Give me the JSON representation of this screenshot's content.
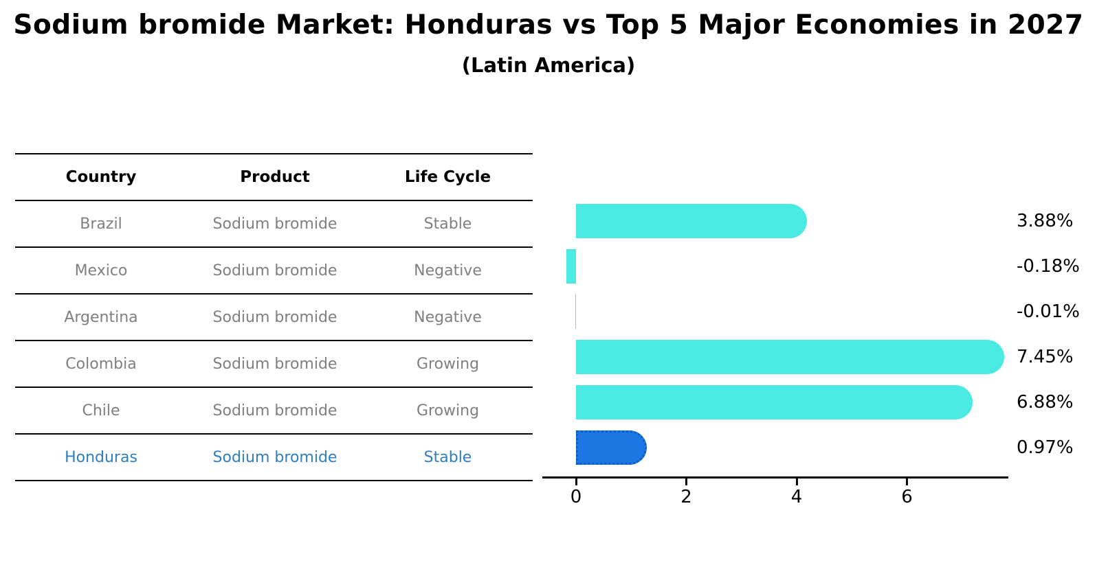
{
  "title": "Sodium bromide Market: Honduras vs Top 5 Major Economies in 2027",
  "subtitle": "(Latin America)",
  "table": {
    "headers": {
      "country": "Country",
      "product": "Product",
      "life_cycle": "Life Cycle"
    },
    "rows": [
      {
        "country": "Brazil",
        "product": "Sodium bromide",
        "life_cycle": "Stable",
        "highlight": false
      },
      {
        "country": "Mexico",
        "product": "Sodium bromide",
        "life_cycle": "Negative",
        "highlight": false
      },
      {
        "country": "Argentina",
        "product": "Sodium bromide",
        "life_cycle": "Negative",
        "highlight": false
      },
      {
        "country": "Colombia",
        "product": "Sodium bromide",
        "life_cycle": "Growing",
        "highlight": false
      },
      {
        "country": "Chile",
        "product": "Sodium bromide",
        "life_cycle": "Growing",
        "highlight": false
      },
      {
        "country": "Honduras",
        "product": "Sodium bromide",
        "life_cycle": "Stable",
        "highlight": true
      }
    ]
  },
  "chart_data": {
    "type": "bar",
    "orientation": "horizontal",
    "categories": [
      "Brazil",
      "Mexico",
      "Argentina",
      "Colombia",
      "Chile",
      "Honduras"
    ],
    "values": [
      3.88,
      -0.18,
      -0.01,
      7.45,
      6.88,
      0.97
    ],
    "value_labels": [
      "3.88%",
      "-0.18%",
      "-0.01%",
      "7.45%",
      "6.88%",
      "0.97%"
    ],
    "highlight_index": 5,
    "xticks": [
      0,
      2,
      4,
      6
    ],
    "xlim": [
      -0.61,
      7.84
    ],
    "grid": false,
    "legend": "none",
    "bar_color": "#4ae9e1",
    "highlight_color": "#1c76e4",
    "highlight_text_color": "#2e7ec0",
    "axis_color": "#000000",
    "row_text_color": "#7f7f7f"
  }
}
